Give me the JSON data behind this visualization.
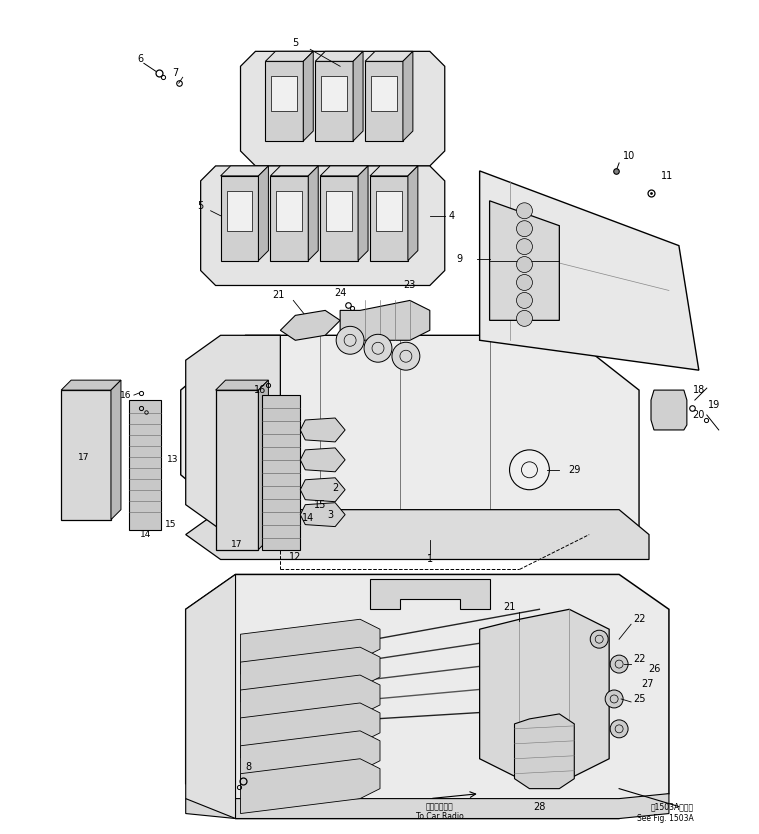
{
  "background_color": "#ffffff",
  "line_color": "#000000",
  "fig_width": 7.59,
  "fig_height": 8.34,
  "dpi": 100,
  "footer_text1": "第1503A図参照",
  "footer_text2": "See Fig. 1503A",
  "car_radio_jp": "カーラジオへ",
  "car_radio_en": "To Car Radio"
}
